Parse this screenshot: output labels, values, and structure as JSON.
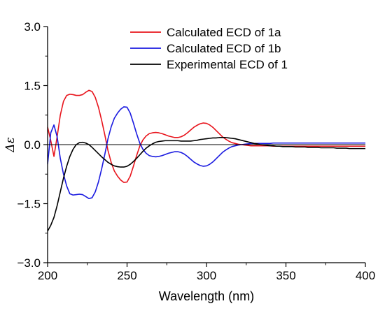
{
  "chart_data": {
    "type": "line",
    "title": "",
    "xlabel": "Wavelength (nm)",
    "ylabel": "Δε",
    "xlim": [
      200,
      400
    ],
    "ylim": [
      -3.0,
      3.0
    ],
    "xticks": [
      200,
      250,
      300,
      350,
      400
    ],
    "yticks": [
      -3.0,
      -1.5,
      0.0,
      1.5,
      3.0
    ],
    "xtick_labels": [
      "200",
      "250",
      "300",
      "350",
      "400"
    ],
    "ytick_labels": [
      "−3.0",
      "−1.5",
      "0.0",
      "1.5",
      "3.0"
    ],
    "grid": false,
    "zero_line": true,
    "legend_position": "top-right",
    "series": [
      {
        "name": "Calculated ECD of 1a",
        "color": "#e8141c",
        "x": [
          200,
          202,
          204,
          206,
          208,
          210,
          212,
          214,
          216,
          218,
          220,
          222,
          224,
          226,
          228,
          230,
          232,
          234,
          236,
          238,
          240,
          242,
          244,
          246,
          248,
          250,
          252,
          254,
          256,
          258,
          260,
          262,
          264,
          266,
          268,
          270,
          272,
          274,
          276,
          278,
          280,
          282,
          284,
          286,
          288,
          290,
          292,
          294,
          296,
          298,
          300,
          302,
          304,
          306,
          308,
          310,
          312,
          314,
          316,
          318,
          320,
          322,
          324,
          326,
          328,
          330,
          332,
          334,
          336,
          338,
          340,
          342,
          344,
          346,
          348,
          350,
          352,
          354,
          356,
          358,
          360,
          362,
          364,
          366,
          368,
          370,
          372,
          374,
          376,
          378,
          380,
          382,
          384,
          386,
          388,
          390,
          392,
          394,
          396,
          398,
          400
        ],
        "y": [
          0.45,
          0.1,
          -0.3,
          0.2,
          0.75,
          1.1,
          1.25,
          1.28,
          1.27,
          1.25,
          1.25,
          1.27,
          1.33,
          1.38,
          1.35,
          1.2,
          0.95,
          0.62,
          0.25,
          -0.15,
          -0.45,
          -0.67,
          -0.8,
          -0.9,
          -0.96,
          -0.95,
          -0.8,
          -0.55,
          -0.28,
          -0.04,
          0.12,
          0.22,
          0.28,
          0.3,
          0.31,
          0.3,
          0.28,
          0.25,
          0.22,
          0.2,
          0.18,
          0.18,
          0.2,
          0.24,
          0.3,
          0.37,
          0.44,
          0.49,
          0.53,
          0.55,
          0.54,
          0.5,
          0.44,
          0.36,
          0.28,
          0.2,
          0.14,
          0.09,
          0.05,
          0.03,
          0.01,
          0.0,
          -0.01,
          -0.02,
          -0.03,
          -0.03,
          -0.03,
          -0.03,
          -0.03,
          -0.03,
          -0.03,
          -0.04,
          -0.04,
          -0.04,
          -0.04,
          -0.04,
          -0.04,
          -0.04,
          -0.04,
          -0.04,
          -0.04,
          -0.04,
          -0.04,
          -0.04,
          -0.04,
          -0.04,
          -0.04,
          -0.04,
          -0.04,
          -0.04,
          -0.04,
          -0.04,
          -0.04,
          -0.04,
          -0.04,
          -0.04,
          -0.04,
          -0.04,
          -0.04,
          -0.04,
          -0.04
        ]
      },
      {
        "name": "Calculated ECD of 1b",
        "color": "#1a1ae0",
        "x": [
          200,
          202,
          204,
          206,
          208,
          210,
          212,
          214,
          216,
          218,
          220,
          222,
          224,
          226,
          228,
          230,
          232,
          234,
          236,
          238,
          240,
          242,
          244,
          246,
          248,
          250,
          252,
          254,
          256,
          258,
          260,
          262,
          264,
          266,
          268,
          270,
          272,
          274,
          276,
          278,
          280,
          282,
          284,
          286,
          288,
          290,
          292,
          294,
          296,
          298,
          300,
          302,
          304,
          306,
          308,
          310,
          312,
          314,
          316,
          318,
          320,
          322,
          324,
          326,
          328,
          330,
          332,
          334,
          336,
          338,
          340,
          342,
          344,
          346,
          348,
          350,
          352,
          354,
          356,
          358,
          360,
          362,
          364,
          366,
          368,
          370,
          372,
          374,
          376,
          378,
          380,
          382,
          384,
          386,
          388,
          390,
          392,
          394,
          396,
          398,
          400
        ],
        "y": [
          -0.5,
          0.3,
          0.5,
          0.2,
          -0.35,
          -0.75,
          -1.05,
          -1.25,
          -1.28,
          -1.27,
          -1.26,
          -1.27,
          -1.32,
          -1.37,
          -1.35,
          -1.2,
          -0.95,
          -0.62,
          -0.25,
          0.15,
          0.45,
          0.67,
          0.8,
          0.9,
          0.96,
          0.95,
          0.8,
          0.55,
          0.28,
          0.04,
          -0.12,
          -0.22,
          -0.28,
          -0.3,
          -0.31,
          -0.3,
          -0.28,
          -0.25,
          -0.22,
          -0.2,
          -0.18,
          -0.18,
          -0.2,
          -0.24,
          -0.3,
          -0.37,
          -0.44,
          -0.49,
          -0.53,
          -0.55,
          -0.54,
          -0.5,
          -0.44,
          -0.36,
          -0.28,
          -0.2,
          -0.14,
          -0.09,
          -0.05,
          -0.03,
          -0.01,
          0.0,
          0.01,
          0.02,
          0.03,
          0.03,
          0.03,
          0.03,
          0.03,
          0.03,
          0.03,
          0.04,
          0.04,
          0.04,
          0.04,
          0.04,
          0.04,
          0.04,
          0.04,
          0.04,
          0.04,
          0.04,
          0.04,
          0.04,
          0.04,
          0.04,
          0.04,
          0.04,
          0.04,
          0.04,
          0.04,
          0.04,
          0.04,
          0.04,
          0.04,
          0.04,
          0.04,
          0.04,
          0.04,
          0.04,
          0.04
        ]
      },
      {
        "name": "Experimental ECD of 1",
        "color": "#000000",
        "x": [
          200,
          202,
          204,
          206,
          208,
          210,
          212,
          214,
          216,
          218,
          220,
          222,
          224,
          226,
          228,
          230,
          232,
          234,
          236,
          238,
          240,
          242,
          244,
          246,
          248,
          250,
          252,
          254,
          256,
          258,
          260,
          262,
          264,
          266,
          268,
          270,
          272,
          274,
          276,
          278,
          280,
          282,
          284,
          286,
          288,
          290,
          292,
          294,
          296,
          298,
          300,
          302,
          304,
          306,
          308,
          310,
          312,
          314,
          316,
          318,
          320,
          322,
          324,
          326,
          328,
          330,
          332,
          334,
          336,
          338,
          340,
          342,
          344,
          346,
          348,
          350,
          352,
          354,
          356,
          358,
          360,
          362,
          364,
          366,
          368,
          370,
          372,
          374,
          376,
          378,
          380,
          382,
          384,
          386,
          388,
          390,
          392,
          394,
          396,
          398,
          400
        ],
        "y": [
          -2.2,
          -2.05,
          -1.85,
          -1.55,
          -1.2,
          -0.85,
          -0.55,
          -0.3,
          -0.12,
          0.0,
          0.05,
          0.06,
          0.04,
          0.0,
          -0.07,
          -0.15,
          -0.23,
          -0.31,
          -0.38,
          -0.45,
          -0.5,
          -0.54,
          -0.56,
          -0.57,
          -0.57,
          -0.55,
          -0.5,
          -0.43,
          -0.35,
          -0.26,
          -0.17,
          -0.09,
          -0.03,
          0.02,
          0.06,
          0.08,
          0.09,
          0.1,
          0.1,
          0.1,
          0.1,
          0.1,
          0.09,
          0.09,
          0.09,
          0.09,
          0.1,
          0.11,
          0.13,
          0.14,
          0.15,
          0.16,
          0.17,
          0.17,
          0.18,
          0.18,
          0.18,
          0.17,
          0.16,
          0.15,
          0.13,
          0.11,
          0.09,
          0.07,
          0.05,
          0.03,
          0.02,
          0.0,
          -0.01,
          -0.02,
          -0.03,
          -0.03,
          -0.04,
          -0.04,
          -0.05,
          -0.05,
          -0.05,
          -0.05,
          -0.06,
          -0.06,
          -0.06,
          -0.06,
          -0.07,
          -0.07,
          -0.07,
          -0.07,
          -0.08,
          -0.08,
          -0.08,
          -0.08,
          -0.08,
          -0.09,
          -0.09,
          -0.09,
          -0.09,
          -0.1,
          -0.1,
          -0.1,
          -0.1,
          -0.1,
          -0.1
        ]
      }
    ]
  }
}
